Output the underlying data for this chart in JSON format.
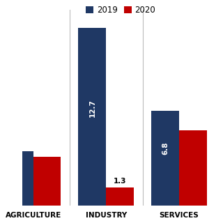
{
  "categories": [
    "AGRICULTURE",
    "INDUSTRY",
    "SERVICES"
  ],
  "values_2019": [
    3.9,
    12.7,
    6.8
  ],
  "values_2020": [
    3.5,
    1.3,
    5.4
  ],
  "bar_color_2019": "#1F3864",
  "bar_color_2020": "#C00000",
  "legend_labels": [
    "2019",
    "2020"
  ],
  "bar_label_2019_agri": "",
  "bar_label_2019_industry": "12.7",
  "bar_label_2019_services": "6.8",
  "bar_label_2020_agri": "",
  "bar_label_2020_industry": "1.3",
  "bar_label_2020_services": "",
  "ylim": [
    0,
    14
  ],
  "bar_width": 0.38,
  "background_color": "#ffffff",
  "label_fontsize": 7.5,
  "tick_fontsize": 7.5,
  "legend_fontsize": 8.5,
  "xlim_left": -0.15,
  "xlim_right": 2.55
}
